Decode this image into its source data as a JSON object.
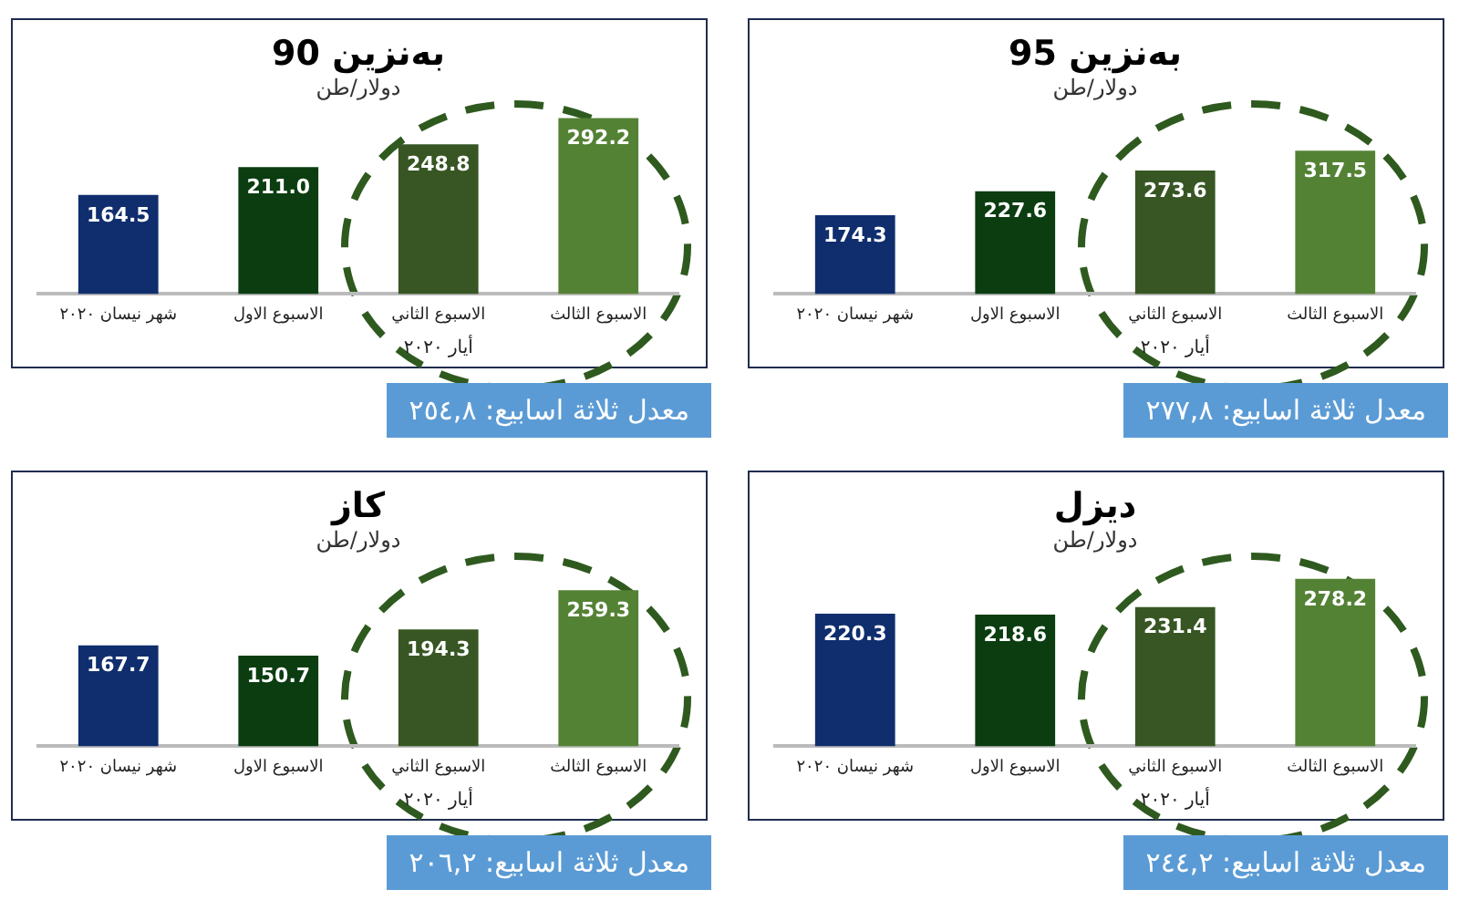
{
  "chart_data": [
    {
      "type": "bar",
      "title": "بەنزين 95",
      "subtitle": "دولار/طن",
      "categories": [
        "شهر نيسان ٢٠٢٠",
        "الاسبوع الاول",
        "الاسبوع الثاني",
        "الاسبوع الثالث"
      ],
      "values": [
        174.3,
        227.6,
        273.6,
        317.5
      ],
      "value_labels": [
        "174.3",
        "227.6",
        "273.6",
        "317.5"
      ],
      "colors": [
        "#102e6e",
        "#0b3d10",
        "#375623",
        "#548235"
      ],
      "tick_labels": "x",
      "grid": false,
      "legend": false,
      "annotations": [
        "أيار ٢٠٢٠",
        "معدل ثلاثة اسابيع: ٢٧٧,٨"
      ]
    },
    {
      "type": "bar",
      "title": "بەنزين 90",
      "subtitle": "دولار/طن",
      "categories": [
        "شهر نيسان ٢٠٢٠",
        "الاسبوع الاول",
        "الاسبوع الثاني",
        "الاسبوع الثالث"
      ],
      "values": [
        164.5,
        211.0,
        248.8,
        292.2
      ],
      "value_labels": [
        "164.5",
        "211.0",
        "248.8",
        "292.2"
      ],
      "colors": [
        "#102e6e",
        "#0b3d10",
        "#375623",
        "#548235"
      ],
      "tick_labels": "x",
      "grid": false,
      "legend": false,
      "annotations": [
        "أيار ٢٠٢٠",
        "معدل ثلاثة اسابيع: ٢٥٤,٨"
      ]
    },
    {
      "type": "bar",
      "title": "ديزل",
      "subtitle": "دولار/طن",
      "categories": [
        "شهر نيسان ٢٠٢٠",
        "الاسبوع الاول",
        "الاسبوع الثاني",
        "الاسبوع الثالث"
      ],
      "values": [
        220.3,
        218.6,
        231.4,
        278.2
      ],
      "value_labels": [
        "220.3",
        "218.6",
        "231.4",
        "278.2"
      ],
      "colors": [
        "#102e6e",
        "#0b3d10",
        "#375623",
        "#548235"
      ],
      "tick_labels": "x",
      "grid": false,
      "legend": false,
      "annotations": [
        "أيار ٢٠٢٠",
        "معدل ثلاثة اسابيع: ٢٤٤,٢"
      ]
    },
    {
      "type": "bar",
      "title": "كاز",
      "subtitle": "دولار/طن",
      "categories": [
        "شهر نيسان ٢٠٢٠",
        "الاسبوع الاول",
        "الاسبوع الثاني",
        "الاسبوع الثالث"
      ],
      "values": [
        167.7,
        150.7,
        194.3,
        259.3
      ],
      "value_labels": [
        "167.7",
        "150.7",
        "194.3",
        "259.3"
      ],
      "colors": [
        "#102e6e",
        "#0b3d10",
        "#375623",
        "#548235"
      ],
      "tick_labels": "x",
      "grid": false,
      "legend": false,
      "annotations": [
        "أيار ٢٠٢٠",
        "معدل ثلاثة اسابيع: ٢٠٦,٢"
      ]
    }
  ]
}
